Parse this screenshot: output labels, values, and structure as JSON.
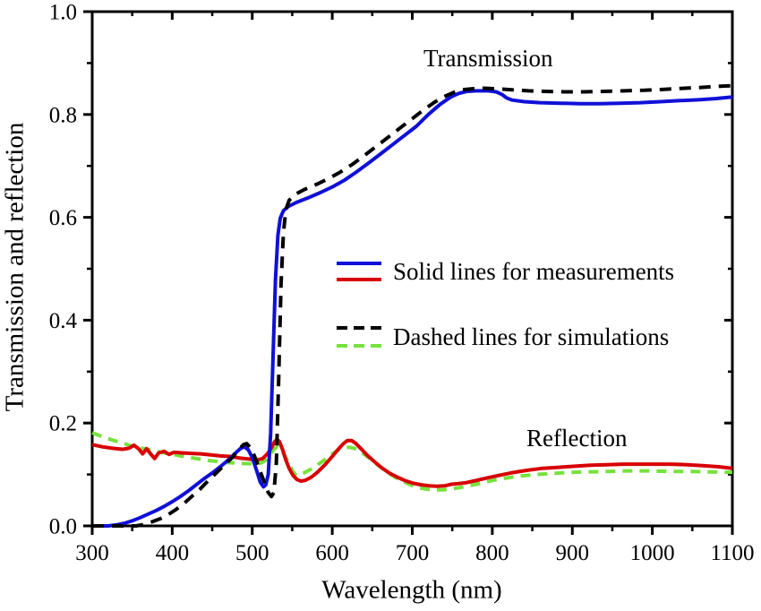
{
  "figure": {
    "background": "#ffffff",
    "frame_color": "#000000",
    "tick_color": "#000000",
    "text_color": "#000000"
  },
  "annotations": {
    "transmission": "Transmission",
    "reflection": "Reflection"
  },
  "legend": {
    "measurements_label": "Solid lines for measurements",
    "simulations_label": "Dashed lines for simulations"
  },
  "axes": {
    "x": {
      "major_ticks": [
        300,
        400,
        500,
        600,
        700,
        800,
        900,
        1000,
        1100
      ],
      "major_tick_labels": [
        "300",
        "400",
        "500",
        "600",
        "700",
        "800",
        "900",
        "1000",
        "1100"
      ],
      "minor_ticks": [
        350,
        450,
        550,
        650,
        750,
        850,
        950,
        1050
      ]
    },
    "y": {
      "major_ticks": [
        0.0,
        0.2,
        0.4,
        0.6,
        0.8,
        1.0
      ],
      "major_tick_labels": [
        "0.0",
        "0.2",
        "0.4",
        "0.6",
        "0.8",
        "1.0"
      ],
      "minor_ticks": [
        0.1,
        0.3,
        0.5,
        0.7,
        0.9
      ]
    }
  },
  "chart_data": {
    "type": "line",
    "title": "",
    "xlabel": "Wavelength (nm)",
    "ylabel": "Transmission and reflection",
    "xlim": [
      300,
      1100
    ],
    "ylim": [
      0.0,
      1.0
    ],
    "grid": false,
    "legend_position": "center",
    "series": [
      {
        "id": "r_sim",
        "name": "Reflection (simulation)",
        "style": "dashed",
        "color": "#76e23c",
        "points": [
          [
            300,
            0.181
          ],
          [
            312,
            0.174
          ],
          [
            325,
            0.167
          ],
          [
            338,
            0.161
          ],
          [
            350,
            0.155
          ],
          [
            362,
            0.151
          ],
          [
            374,
            0.147
          ],
          [
            386,
            0.143
          ],
          [
            398,
            0.14
          ],
          [
            410,
            0.136
          ],
          [
            422,
            0.133
          ],
          [
            434,
            0.13
          ],
          [
            446,
            0.127
          ],
          [
            458,
            0.125
          ],
          [
            470,
            0.123
          ],
          [
            482,
            0.122
          ],
          [
            494,
            0.121
          ],
          [
            505,
            0.12
          ],
          [
            512,
            0.123
          ],
          [
            518,
            0.129
          ],
          [
            523,
            0.139
          ],
          [
            527,
            0.149
          ],
          [
            531,
            0.154
          ],
          [
            535,
            0.15
          ],
          [
            539,
            0.141
          ],
          [
            543,
            0.13
          ],
          [
            547,
            0.117
          ],
          [
            551,
            0.105
          ],
          [
            555,
            0.098
          ],
          [
            560,
            0.1
          ],
          [
            566,
            0.104
          ],
          [
            573,
            0.11
          ],
          [
            581,
            0.118
          ],
          [
            590,
            0.128
          ],
          [
            599,
            0.139
          ],
          [
            607,
            0.147
          ],
          [
            614,
            0.151
          ],
          [
            621,
            0.153
          ],
          [
            627,
            0.151
          ],
          [
            634,
            0.146
          ],
          [
            642,
            0.137
          ],
          [
            650,
            0.127
          ],
          [
            659,
            0.116
          ],
          [
            669,
            0.104
          ],
          [
            679,
            0.094
          ],
          [
            689,
            0.086
          ],
          [
            699,
            0.079
          ],
          [
            709,
            0.074
          ],
          [
            719,
            0.071
          ],
          [
            729,
            0.07
          ],
          [
            739,
            0.07
          ],
          [
            749,
            0.072
          ],
          [
            761,
            0.075
          ],
          [
            774,
            0.079
          ],
          [
            788,
            0.084
          ],
          [
            802,
            0.089
          ],
          [
            817,
            0.093
          ],
          [
            835,
            0.097
          ],
          [
            855,
            0.1
          ],
          [
            875,
            0.102
          ],
          [
            895,
            0.104
          ],
          [
            920,
            0.105
          ],
          [
            945,
            0.106
          ],
          [
            970,
            0.107
          ],
          [
            995,
            0.107
          ],
          [
            1020,
            0.106
          ],
          [
            1045,
            0.106
          ],
          [
            1070,
            0.105
          ],
          [
            1100,
            0.104
          ]
        ]
      },
      {
        "id": "r_meas",
        "name": "Reflection (measurement)",
        "style": "solid",
        "color": "#d80000",
        "points": [
          [
            300,
            0.158
          ],
          [
            312,
            0.154
          ],
          [
            325,
            0.151
          ],
          [
            338,
            0.149
          ],
          [
            346,
            0.151
          ],
          [
            352,
            0.157
          ],
          [
            358,
            0.15
          ],
          [
            363,
            0.14
          ],
          [
            368,
            0.15
          ],
          [
            373,
            0.14
          ],
          [
            378,
            0.131
          ],
          [
            383,
            0.142
          ],
          [
            390,
            0.145
          ],
          [
            396,
            0.139
          ],
          [
            402,
            0.143
          ],
          [
            412,
            0.142
          ],
          [
            424,
            0.141
          ],
          [
            436,
            0.14
          ],
          [
            448,
            0.138
          ],
          [
            460,
            0.136
          ],
          [
            472,
            0.135
          ],
          [
            484,
            0.132
          ],
          [
            496,
            0.13
          ],
          [
            506,
            0.128
          ],
          [
            513,
            0.131
          ],
          [
            519,
            0.14
          ],
          [
            524,
            0.152
          ],
          [
            528,
            0.164
          ],
          [
            531,
            0.168
          ],
          [
            534,
            0.164
          ],
          [
            538,
            0.148
          ],
          [
            542,
            0.128
          ],
          [
            546,
            0.112
          ],
          [
            551,
            0.098
          ],
          [
            556,
            0.09
          ],
          [
            561,
            0.087
          ],
          [
            567,
            0.089
          ],
          [
            574,
            0.095
          ],
          [
            582,
            0.105
          ],
          [
            591,
            0.119
          ],
          [
            600,
            0.135
          ],
          [
            608,
            0.15
          ],
          [
            614,
            0.16
          ],
          [
            619,
            0.166
          ],
          [
            624,
            0.166
          ],
          [
            629,
            0.161
          ],
          [
            636,
            0.15
          ],
          [
            644,
            0.137
          ],
          [
            652,
            0.126
          ],
          [
            661,
            0.114
          ],
          [
            671,
            0.103
          ],
          [
            681,
            0.095
          ],
          [
            691,
            0.088
          ],
          [
            701,
            0.083
          ],
          [
            711,
            0.08
          ],
          [
            721,
            0.078
          ],
          [
            731,
            0.077
          ],
          [
            741,
            0.078
          ],
          [
            749,
            0.081
          ],
          [
            757,
            0.082
          ],
          [
            767,
            0.084
          ],
          [
            779,
            0.088
          ],
          [
            793,
            0.093
          ],
          [
            808,
            0.098
          ],
          [
            823,
            0.103
          ],
          [
            843,
            0.108
          ],
          [
            863,
            0.112
          ],
          [
            883,
            0.114
          ],
          [
            903,
            0.116
          ],
          [
            923,
            0.118
          ],
          [
            943,
            0.119
          ],
          [
            963,
            0.12
          ],
          [
            983,
            0.12
          ],
          [
            1003,
            0.12
          ],
          [
            1023,
            0.12
          ],
          [
            1043,
            0.119
          ],
          [
            1063,
            0.117
          ],
          [
            1083,
            0.115
          ],
          [
            1100,
            0.112
          ]
        ]
      },
      {
        "id": "t_meas",
        "name": "Transmission (measurement)",
        "style": "solid",
        "color": "#1010d8",
        "points": [
          [
            300,
            0.0
          ],
          [
            310,
            0.0
          ],
          [
            320,
            0.0
          ],
          [
            330,
            0.002
          ],
          [
            340,
            0.005
          ],
          [
            350,
            0.01
          ],
          [
            360,
            0.016
          ],
          [
            370,
            0.023
          ],
          [
            380,
            0.03
          ],
          [
            390,
            0.038
          ],
          [
            400,
            0.047
          ],
          [
            410,
            0.057
          ],
          [
            420,
            0.068
          ],
          [
            430,
            0.08
          ],
          [
            440,
            0.092
          ],
          [
            450,
            0.103
          ],
          [
            460,
            0.115
          ],
          [
            470,
            0.128
          ],
          [
            478,
            0.14
          ],
          [
            485,
            0.15
          ],
          [
            490,
            0.154
          ],
          [
            495,
            0.148
          ],
          [
            500,
            0.133
          ],
          [
            505,
            0.11
          ],
          [
            510,
            0.085
          ],
          [
            514,
            0.076
          ],
          [
            517,
            0.08
          ],
          [
            520,
            0.1
          ],
          [
            523,
            0.18
          ],
          [
            526,
            0.33
          ],
          [
            529,
            0.48
          ],
          [
            532,
            0.565
          ],
          [
            535,
            0.598
          ],
          [
            539,
            0.613
          ],
          [
            545,
            0.621
          ],
          [
            555,
            0.629
          ],
          [
            570,
            0.638
          ],
          [
            585,
            0.648
          ],
          [
            600,
            0.659
          ],
          [
            615,
            0.672
          ],
          [
            630,
            0.688
          ],
          [
            645,
            0.705
          ],
          [
            660,
            0.723
          ],
          [
            675,
            0.741
          ],
          [
            690,
            0.759
          ],
          [
            705,
            0.777
          ],
          [
            720,
            0.8
          ],
          [
            735,
            0.82
          ],
          [
            748,
            0.834
          ],
          [
            758,
            0.841
          ],
          [
            768,
            0.845
          ],
          [
            780,
            0.846
          ],
          [
            795,
            0.846
          ],
          [
            805,
            0.844
          ],
          [
            812,
            0.839
          ],
          [
            818,
            0.832
          ],
          [
            825,
            0.828
          ],
          [
            840,
            0.825
          ],
          [
            860,
            0.823
          ],
          [
            885,
            0.822
          ],
          [
            910,
            0.821
          ],
          [
            935,
            0.821
          ],
          [
            960,
            0.822
          ],
          [
            985,
            0.823
          ],
          [
            1010,
            0.825
          ],
          [
            1035,
            0.827
          ],
          [
            1060,
            0.829
          ],
          [
            1080,
            0.831
          ],
          [
            1100,
            0.834
          ]
        ]
      },
      {
        "id": "t_sim",
        "name": "Transmission (simulation)",
        "style": "dashed",
        "color": "#000000",
        "points": [
          [
            300,
            0.0
          ],
          [
            320,
            0.0
          ],
          [
            340,
            0.0
          ],
          [
            355,
            0.0
          ],
          [
            365,
            0.003
          ],
          [
            375,
            0.008
          ],
          [
            385,
            0.014
          ],
          [
            395,
            0.022
          ],
          [
            405,
            0.032
          ],
          [
            415,
            0.044
          ],
          [
            425,
            0.058
          ],
          [
            435,
            0.072
          ],
          [
            445,
            0.088
          ],
          [
            455,
            0.103
          ],
          [
            465,
            0.118
          ],
          [
            475,
            0.133
          ],
          [
            483,
            0.148
          ],
          [
            489,
            0.158
          ],
          [
            493,
            0.16
          ],
          [
            498,
            0.152
          ],
          [
            503,
            0.135
          ],
          [
            509,
            0.11
          ],
          [
            515,
            0.085
          ],
          [
            520,
            0.065
          ],
          [
            524,
            0.057
          ],
          [
            527,
            0.065
          ],
          [
            530,
            0.12
          ],
          [
            533,
            0.28
          ],
          [
            536,
            0.47
          ],
          [
            539,
            0.57
          ],
          [
            542,
            0.615
          ],
          [
            546,
            0.633
          ],
          [
            553,
            0.644
          ],
          [
            565,
            0.654
          ],
          [
            580,
            0.664
          ],
          [
            595,
            0.675
          ],
          [
            610,
            0.688
          ],
          [
            625,
            0.703
          ],
          [
            640,
            0.72
          ],
          [
            655,
            0.738
          ],
          [
            670,
            0.756
          ],
          [
            685,
            0.774
          ],
          [
            700,
            0.792
          ],
          [
            715,
            0.81
          ],
          [
            728,
            0.824
          ],
          [
            740,
            0.835
          ],
          [
            752,
            0.843
          ],
          [
            763,
            0.848
          ],
          [
            775,
            0.85
          ],
          [
            790,
            0.851
          ],
          [
            805,
            0.85
          ],
          [
            825,
            0.848
          ],
          [
            845,
            0.846
          ],
          [
            865,
            0.845
          ],
          [
            890,
            0.844
          ],
          [
            915,
            0.844
          ],
          [
            940,
            0.845
          ],
          [
            965,
            0.846
          ],
          [
            990,
            0.847
          ],
          [
            1015,
            0.849
          ],
          [
            1040,
            0.851
          ],
          [
            1065,
            0.853
          ],
          [
            1085,
            0.855
          ],
          [
            1100,
            0.856
          ]
        ]
      }
    ]
  }
}
